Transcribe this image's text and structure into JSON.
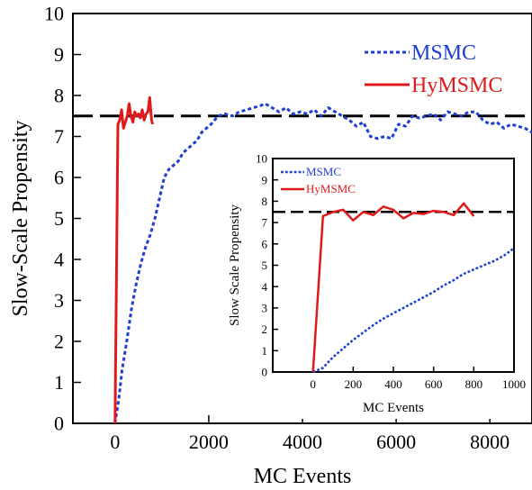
{
  "chart_data": [
    {
      "type": "line",
      "xlabel": "MC Events",
      "ylabel": "Slow-Scale Propensity",
      "xlim": [
        -900,
        8900
      ],
      "ylim": [
        0,
        10
      ],
      "x_ticks": [
        0,
        2000,
        4000,
        6000,
        8000
      ],
      "y_ticks": [
        0,
        1,
        2,
        3,
        4,
        5,
        6,
        7,
        8,
        9,
        10
      ],
      "grid": false,
      "legend_position": "top-right",
      "reference_line": {
        "y": 7.5,
        "style": "dashed",
        "color": "#000000"
      },
      "series": [
        {
          "name": "MSMC",
          "color": "#1f3fd1",
          "style": "dotted",
          "x": [
            0,
            80,
            150,
            250,
            350,
            450,
            550,
            650,
            750,
            850,
            950,
            1050,
            1150,
            1250,
            1350,
            1450,
            1550,
            1650,
            1750,
            1850,
            1950,
            2050,
            2200,
            2350,
            2500,
            2650,
            2800,
            2950,
            3100,
            3200,
            3350,
            3500,
            3650,
            3800,
            3950,
            4100,
            4250,
            4400,
            4550,
            4700,
            4850,
            5000,
            5150,
            5300,
            5450,
            5600,
            5750,
            5900,
            6050,
            6200,
            6350,
            6500,
            6650,
            6800,
            6950,
            7100,
            7250,
            7400,
            7550,
            7700,
            7850,
            8000,
            8150,
            8300,
            8450,
            8600,
            8750,
            8900
          ],
          "y": [
            0,
            0.6,
            1.3,
            2.0,
            2.8,
            3.4,
            3.9,
            4.3,
            4.6,
            5.0,
            5.5,
            6.0,
            6.2,
            6.3,
            6.4,
            6.6,
            6.7,
            6.8,
            6.9,
            7.1,
            7.2,
            7.3,
            7.5,
            7.55,
            7.5,
            7.6,
            7.65,
            7.7,
            7.75,
            7.8,
            7.7,
            7.6,
            7.7,
            7.55,
            7.6,
            7.55,
            7.65,
            7.5,
            7.7,
            7.6,
            7.5,
            7.4,
            7.25,
            7.35,
            7.0,
            6.95,
            7.0,
            6.95,
            7.3,
            7.25,
            7.5,
            7.45,
            7.5,
            7.55,
            7.4,
            7.6,
            7.55,
            7.5,
            7.6,
            7.6,
            7.4,
            7.3,
            7.35,
            7.2,
            7.3,
            7.25,
            7.2,
            7.1
          ]
        },
        {
          "name": "HyMSMC",
          "color": "#e01a1a",
          "style": "solid",
          "x": [
            0,
            60,
            100,
            140,
            180,
            220,
            260,
            300,
            340,
            380,
            420,
            460,
            500,
            540,
            580,
            620,
            660,
            700,
            740,
            780,
            800
          ],
          "y": [
            0,
            7.3,
            7.4,
            7.65,
            7.2,
            7.35,
            7.5,
            7.8,
            7.5,
            7.35,
            7.6,
            7.5,
            7.55,
            7.45,
            7.65,
            7.4,
            7.55,
            7.6,
            7.95,
            7.4,
            7.3
          ]
        }
      ]
    },
    {
      "type": "line",
      "xlabel": "MC Events",
      "ylabel": "Slow Scale Propensity",
      "xlim": [
        -200,
        1000
      ],
      "ylim": [
        0,
        10
      ],
      "x_ticks": [
        0,
        200,
        400,
        600,
        800,
        1000
      ],
      "y_ticks": [
        0,
        1,
        2,
        3,
        4,
        5,
        6,
        7,
        8,
        9,
        10
      ],
      "grid": false,
      "legend_position": "top-left",
      "reference_line": {
        "y": 7.5,
        "style": "dashed",
        "color": "#000000"
      },
      "series": [
        {
          "name": "MSMC",
          "color": "#1f3fd1",
          "style": "dotted",
          "x": [
            0,
            50,
            100,
            150,
            200,
            250,
            300,
            350,
            400,
            450,
            500,
            550,
            600,
            650,
            700,
            750,
            800,
            850,
            900,
            950,
            1000
          ],
          "y": [
            0,
            0.2,
            0.7,
            1.1,
            1.5,
            1.85,
            2.2,
            2.5,
            2.75,
            3.0,
            3.25,
            3.5,
            3.75,
            4.05,
            4.3,
            4.6,
            4.8,
            5.0,
            5.2,
            5.45,
            5.8
          ]
        },
        {
          "name": "HyMSMC",
          "color": "#e01a1a",
          "style": "solid",
          "x": [
            0,
            50,
            100,
            150,
            200,
            250,
            300,
            350,
            400,
            450,
            500,
            550,
            600,
            650,
            700,
            750,
            800
          ],
          "y": [
            0,
            7.3,
            7.5,
            7.6,
            7.1,
            7.5,
            7.35,
            7.75,
            7.6,
            7.2,
            7.45,
            7.4,
            7.55,
            7.5,
            7.35,
            7.9,
            7.3
          ]
        }
      ]
    }
  ]
}
